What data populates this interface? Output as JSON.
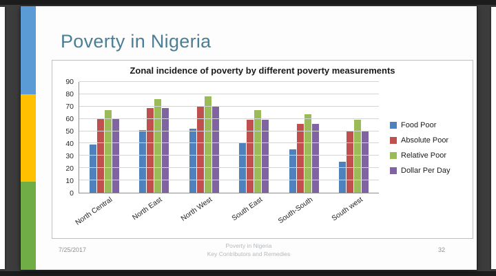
{
  "viewer": {
    "background_color": "#3c3c3c"
  },
  "slide": {
    "title": "Poverty in Nigeria",
    "title_color": "#4b7e96",
    "band_colors": [
      "#5b9bd5",
      "#ffc000",
      "#70ad47"
    ],
    "footer": {
      "date": "7/25/2017",
      "center_line1": "Poverty in Nigeria",
      "center_line2": "Key Contributors and Remedies",
      "page_number": "32"
    }
  },
  "chart_data": {
    "type": "bar",
    "title": "Zonal incidence of poverty by different poverty measurements",
    "categories": [
      "North Central",
      "North East",
      "North West",
      "South East",
      "South-South",
      "South west"
    ],
    "series": [
      {
        "name": "Food Poor",
        "color": "#4f81bd",
        "values": [
          39,
          51,
          52,
          41,
          35,
          25
        ]
      },
      {
        "name": "Absolute Poor",
        "color": "#c0504d",
        "values": [
          60,
          69,
          70,
          59,
          56,
          50
        ]
      },
      {
        "name": "Relative Poor",
        "color": "#9bbb59",
        "values": [
          67,
          76,
          78,
          67,
          64,
          59
        ]
      },
      {
        "name": "Dollar Per Day",
        "color": "#8064a2",
        "values": [
          60,
          69,
          70,
          59,
          56,
          50
        ]
      }
    ],
    "xlabel": "",
    "ylabel": "",
    "ylim": [
      0,
      90
    ],
    "yticks": [
      0,
      10,
      20,
      30,
      40,
      50,
      60,
      70,
      80,
      90
    ],
    "grid": true,
    "legend_position": "right"
  }
}
